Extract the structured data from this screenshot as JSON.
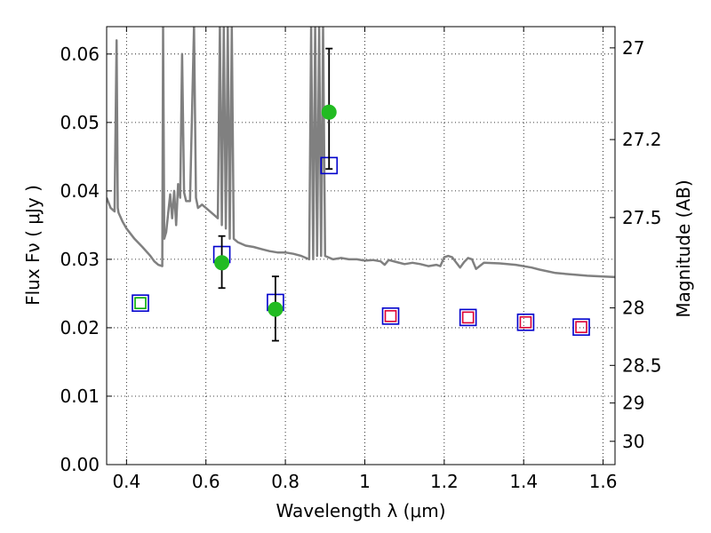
{
  "chart_data": {
    "type": "scatter",
    "xlabel": "Wavelength  λ (μm)",
    "ylabel": "Flux  Fν  ( μJy )",
    "ylabel_right": "Magnitude (AB)",
    "xlim": [
      0.35,
      1.63
    ],
    "ylim": [
      0.0,
      0.064
    ],
    "grid": true,
    "x_ticks": [
      0.4,
      0.6,
      0.8,
      1.0,
      1.2,
      1.4,
      1.6
    ],
    "x_tick_labels": [
      "0.4",
      "0.6",
      "0.8",
      "1",
      "1.2",
      "1.4",
      "1.6"
    ],
    "y_ticks": [
      0.0,
      0.01,
      0.02,
      0.03,
      0.04,
      0.05,
      0.06
    ],
    "y_tick_labels": [
      "0.00",
      "0.01",
      "0.02",
      "0.03",
      "0.04",
      "0.05",
      "0.06"
    ],
    "right_ticks": [
      {
        "flux": 0.0609,
        "label": "27"
      },
      {
        "flux": 0.0475,
        "label": "27.2"
      },
      {
        "flux": 0.0361,
        "label": "27.5"
      },
      {
        "flux": 0.0229,
        "label": "28"
      },
      {
        "flux": 0.0145,
        "label": "28.5"
      },
      {
        "flux": 0.009,
        "label": "29"
      },
      {
        "flux": 0.0034,
        "label": "30"
      }
    ],
    "series": [
      {
        "type": "line",
        "color": "#808080",
        "x": [
          0.35,
          0.36,
          0.37,
          0.375,
          0.378,
          0.38,
          0.39,
          0.4,
          0.42,
          0.44,
          0.46,
          0.47,
          0.48,
          0.49,
          0.492,
          0.495,
          0.5,
          0.51,
          0.515,
          0.52,
          0.525,
          0.53,
          0.535,
          0.54,
          0.545,
          0.55,
          0.56,
          0.57,
          0.575,
          0.58,
          0.59,
          0.6,
          0.62,
          0.63,
          0.635,
          0.64,
          0.645,
          0.65,
          0.655,
          0.66,
          0.665,
          0.67,
          0.68,
          0.7,
          0.72,
          0.74,
          0.76,
          0.78,
          0.8,
          0.82,
          0.84,
          0.86,
          0.865,
          0.87,
          0.875,
          0.88,
          0.885,
          0.89,
          0.895,
          0.9,
          0.92,
          0.94,
          0.96,
          0.98,
          1.0,
          1.02,
          1.04,
          1.05,
          1.06,
          1.08,
          1.1,
          1.12,
          1.14,
          1.16,
          1.18,
          1.19,
          1.2,
          1.21,
          1.22,
          1.24,
          1.25,
          1.26,
          1.27,
          1.28,
          1.3,
          1.34,
          1.38,
          1.4,
          1.42,
          1.44,
          1.48,
          1.52,
          1.56,
          1.6,
          1.63
        ],
        "y": [
          0.039,
          0.0375,
          0.037,
          0.062,
          0.0375,
          0.0368,
          0.0355,
          0.0345,
          0.033,
          0.0318,
          0.0305,
          0.0297,
          0.0292,
          0.029,
          0.064,
          0.033,
          0.034,
          0.0395,
          0.036,
          0.04,
          0.035,
          0.041,
          0.039,
          0.06,
          0.0398,
          0.0385,
          0.0385,
          0.064,
          0.039,
          0.0375,
          0.038,
          0.0375,
          0.0365,
          0.036,
          0.064,
          0.035,
          0.064,
          0.0345,
          0.064,
          0.033,
          0.064,
          0.033,
          0.0325,
          0.032,
          0.0318,
          0.0315,
          0.0312,
          0.031,
          0.031,
          0.0308,
          0.0305,
          0.03,
          0.064,
          0.03,
          0.064,
          0.0305,
          0.064,
          0.0305,
          0.064,
          0.0305,
          0.03,
          0.0302,
          0.03,
          0.03,
          0.0298,
          0.0299,
          0.0297,
          0.0292,
          0.0299,
          0.0296,
          0.0293,
          0.0295,
          0.0293,
          0.029,
          0.0292,
          0.029,
          0.0303,
          0.0305,
          0.0303,
          0.0288,
          0.0296,
          0.0302,
          0.03,
          0.0286,
          0.0295,
          0.0294,
          0.0292,
          0.029,
          0.0288,
          0.0285,
          0.028,
          0.0278,
          0.0276,
          0.0275,
          0.0274
        ]
      },
      {
        "type": "scatter",
        "marker": "square",
        "color": "#0000cc",
        "x": [
          0.435,
          0.64,
          0.775,
          0.91,
          1.065,
          1.26,
          1.405,
          1.545
        ],
        "y": [
          0.0236,
          0.0307,
          0.0237,
          0.0437,
          0.0217,
          0.0215,
          0.0208,
          0.0201
        ]
      },
      {
        "type": "scatter",
        "marker": "square",
        "color": "#00aa00",
        "x": [
          0.435
        ],
        "y": [
          0.0236
        ]
      },
      {
        "type": "scatter",
        "marker": "square",
        "color": "#dd0033",
        "x": [
          1.065,
          1.26,
          1.405,
          1.545
        ],
        "y": [
          0.0217,
          0.0215,
          0.0208,
          0.0201
        ]
      },
      {
        "type": "scatter",
        "marker": "circle",
        "color": "#22bb22",
        "x": [
          0.64,
          0.775,
          0.91
        ],
        "y": [
          0.0295,
          0.0227,
          0.0515
        ],
        "yerr_low": [
          0.0258,
          0.0181,
          0.0432
        ],
        "yerr_high": [
          0.0334,
          0.0275,
          0.0608
        ]
      }
    ]
  }
}
